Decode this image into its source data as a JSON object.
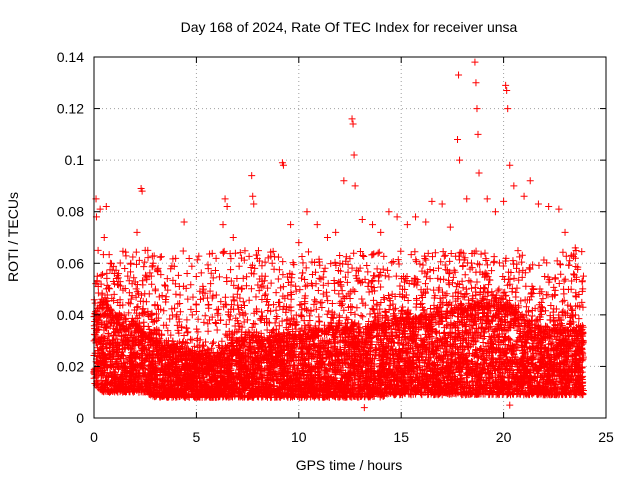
{
  "chart_data": {
    "type": "scatter",
    "title": "Day 168 of 2024, Rate Of TEC Index for receiver unsa",
    "xlabel": "GPS time / hours",
    "ylabel": "ROTI / TECUs",
    "xlim": [
      0,
      25
    ],
    "ylim": [
      0,
      0.14
    ],
    "x_ticks": [
      "0",
      "5",
      "10",
      "15",
      "20",
      "25"
    ],
    "y_ticks": [
      "0",
      "0.02",
      "0.04",
      "0.06",
      "0.08",
      "0.1",
      "0.12",
      "0.14"
    ],
    "grid": true,
    "marker": "+",
    "color": "#ff0000",
    "series": [
      {
        "points": [
          [
            0.0,
            0.018
          ],
          [
            0.1,
            0.085
          ],
          [
            0.12,
            0.078
          ],
          [
            0.2,
            0.065
          ],
          [
            0.3,
            0.081
          ],
          [
            0.5,
            0.07
          ],
          [
            0.6,
            0.082
          ],
          [
            0.8,
            0.06
          ],
          [
            1.0,
            0.052
          ],
          [
            1.2,
            0.056
          ],
          [
            1.5,
            0.058
          ],
          [
            1.8,
            0.06
          ],
          [
            2.1,
            0.072
          ],
          [
            2.3,
            0.089
          ],
          [
            2.35,
            0.088
          ],
          [
            2.5,
            0.065
          ],
          [
            2.8,
            0.055
          ],
          [
            3.0,
            0.05
          ],
          [
            3.5,
            0.045
          ],
          [
            4.0,
            0.048
          ],
          [
            4.4,
            0.076
          ],
          [
            4.8,
            0.04
          ],
          [
            5.2,
            0.046
          ],
          [
            5.6,
            0.044
          ],
          [
            6.0,
            0.042
          ],
          [
            6.3,
            0.075
          ],
          [
            6.4,
            0.085
          ],
          [
            6.5,
            0.082
          ],
          [
            6.8,
            0.07
          ],
          [
            7.2,
            0.05
          ],
          [
            7.7,
            0.094
          ],
          [
            7.75,
            0.086
          ],
          [
            7.8,
            0.083
          ],
          [
            8.2,
            0.055
          ],
          [
            8.7,
            0.06
          ],
          [
            9.2,
            0.099
          ],
          [
            9.25,
            0.098
          ],
          [
            9.6,
            0.075
          ],
          [
            10.0,
            0.068
          ],
          [
            10.4,
            0.08
          ],
          [
            10.9,
            0.075
          ],
          [
            11.4,
            0.07
          ],
          [
            11.8,
            0.072
          ],
          [
            12.2,
            0.092
          ],
          [
            12.6,
            0.116
          ],
          [
            12.65,
            0.114
          ],
          [
            12.7,
            0.102
          ],
          [
            12.75,
            0.09
          ],
          [
            13.1,
            0.077
          ],
          [
            13.6,
            0.075
          ],
          [
            14.0,
            0.072
          ],
          [
            14.4,
            0.08
          ],
          [
            14.8,
            0.078
          ],
          [
            15.3,
            0.075
          ],
          [
            15.7,
            0.078
          ],
          [
            16.2,
            0.076
          ],
          [
            16.5,
            0.084
          ],
          [
            17.0,
            0.083
          ],
          [
            17.4,
            0.074
          ],
          [
            17.75,
            0.108
          ],
          [
            17.8,
            0.133
          ],
          [
            17.85,
            0.1
          ],
          [
            18.2,
            0.085
          ],
          [
            18.6,
            0.138
          ],
          [
            18.65,
            0.13
          ],
          [
            18.7,
            0.12
          ],
          [
            18.75,
            0.11
          ],
          [
            18.8,
            0.095
          ],
          [
            19.2,
            0.085
          ],
          [
            19.6,
            0.08
          ],
          [
            20.0,
            0.084
          ],
          [
            20.1,
            0.129
          ],
          [
            20.15,
            0.127
          ],
          [
            20.2,
            0.12
          ],
          [
            20.3,
            0.098
          ],
          [
            20.5,
            0.09
          ],
          [
            21.0,
            0.086
          ],
          [
            21.3,
            0.092
          ],
          [
            21.7,
            0.083
          ],
          [
            22.2,
            0.082
          ],
          [
            22.7,
            0.081
          ],
          [
            23.0,
            0.072
          ],
          [
            23.5,
            0.066
          ],
          [
            23.9,
            0.055
          ],
          [
            20.3,
            0.005
          ],
          [
            13.2,
            0.004
          ]
        ],
        "band": [
          [
            0.0,
            0.012,
            0.04
          ],
          [
            0.5,
            0.01,
            0.045
          ],
          [
            1.0,
            0.01,
            0.04
          ],
          [
            1.5,
            0.01,
            0.035
          ],
          [
            2.0,
            0.01,
            0.036
          ],
          [
            2.5,
            0.01,
            0.032
          ],
          [
            3.0,
            0.008,
            0.03
          ],
          [
            3.5,
            0.008,
            0.028
          ],
          [
            4.0,
            0.008,
            0.027
          ],
          [
            4.5,
            0.008,
            0.026
          ],
          [
            5.0,
            0.008,
            0.025
          ],
          [
            5.5,
            0.008,
            0.024
          ],
          [
            6.0,
            0.008,
            0.024
          ],
          [
            6.5,
            0.008,
            0.028
          ],
          [
            7.0,
            0.008,
            0.03
          ],
          [
            7.5,
            0.008,
            0.03
          ],
          [
            8.0,
            0.008,
            0.03
          ],
          [
            8.5,
            0.008,
            0.031
          ],
          [
            9.0,
            0.008,
            0.032
          ],
          [
            9.5,
            0.008,
            0.032
          ],
          [
            10.0,
            0.008,
            0.032
          ],
          [
            10.5,
            0.008,
            0.033
          ],
          [
            11.0,
            0.008,
            0.033
          ],
          [
            11.5,
            0.008,
            0.034
          ],
          [
            12.0,
            0.008,
            0.034
          ],
          [
            12.5,
            0.008,
            0.034
          ],
          [
            13.0,
            0.008,
            0.035
          ],
          [
            13.5,
            0.008,
            0.035
          ],
          [
            14.0,
            0.008,
            0.036
          ],
          [
            14.5,
            0.009,
            0.037
          ],
          [
            15.0,
            0.009,
            0.038
          ],
          [
            15.5,
            0.009,
            0.038
          ],
          [
            16.0,
            0.009,
            0.039
          ],
          [
            16.5,
            0.009,
            0.039
          ],
          [
            17.0,
            0.009,
            0.04
          ],
          [
            17.5,
            0.009,
            0.041
          ],
          [
            18.0,
            0.009,
            0.042
          ],
          [
            18.5,
            0.009,
            0.043
          ],
          [
            19.0,
            0.009,
            0.043
          ],
          [
            19.5,
            0.009,
            0.043
          ],
          [
            20.0,
            0.009,
            0.042
          ],
          [
            20.5,
            0.009,
            0.04
          ],
          [
            21.0,
            0.009,
            0.038
          ],
          [
            21.5,
            0.009,
            0.036
          ],
          [
            22.0,
            0.009,
            0.035
          ],
          [
            22.5,
            0.009,
            0.034
          ],
          [
            23.0,
            0.009,
            0.034
          ],
          [
            23.5,
            0.009,
            0.034
          ],
          [
            23.9,
            0.009,
            0.033
          ]
        ]
      }
    ]
  }
}
